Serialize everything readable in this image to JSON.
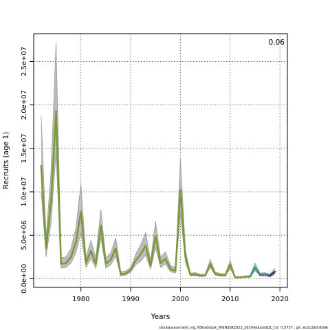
{
  "chart_data": {
    "type": "line",
    "title": "",
    "xlabel": "Years",
    "ylabel": "Recruits (age 1)",
    "corner_label": "0.06",
    "footer": "stockassessment.org, NShaddock_WGNSSK2022_2020reducedQ1_CV, r15737 , git: ec2c2a0c6dde",
    "xlim": [
      1970.5,
      2021.5
    ],
    "ylim": [
      -1000000,
      28200000
    ],
    "grid": "dotted at major ticks",
    "x_ticks": [
      1980,
      1990,
      2000,
      2010,
      2020
    ],
    "x_tick_labels": [
      "1980",
      "1990",
      "2000",
      "2010",
      "2020"
    ],
    "y_ticks": [
      0,
      5000000,
      10000000,
      15000000,
      20000000,
      25000000
    ],
    "y_tick_labels": [
      "0.0e+00",
      "5.0e+06",
      "1.0e+07",
      "1.5e+07",
      "2.0e+07",
      "2.5e+07"
    ],
    "years": [
      1972,
      1973,
      1974,
      1975,
      1976,
      1977,
      1978,
      1979,
      1980,
      1981,
      1982,
      1983,
      1984,
      1985,
      1986,
      1987,
      1988,
      1989,
      1990,
      1991,
      1992,
      1993,
      1994,
      1995,
      1996,
      1997,
      1998,
      1999,
      2000,
      2001,
      2002,
      2003,
      2004,
      2005,
      2006,
      2007,
      2008,
      2009,
      2010,
      2011,
      2012,
      2013,
      2014,
      2015,
      2016,
      2017,
      2018,
      2019
    ],
    "estimate": [
      13000000,
      3500000,
      9000000,
      19300000,
      1700000,
      1800000,
      2500000,
      4200000,
      7700000,
      1800000,
      3200000,
      1700000,
      6100000,
      1700000,
      2200000,
      3500000,
      500000,
      600000,
      1000000,
      2100000,
      2800000,
      3800000,
      1500000,
      4900000,
      1800000,
      2300000,
      1100000,
      900000,
      10200000,
      2500000,
      450000,
      500000,
      350000,
      380000,
      1700000,
      550000,
      420000,
      380000,
      1600000,
      150000,
      150000,
      220000,
      250000,
      1300000,
      450000,
      480000,
      350000,
      800000
    ],
    "lower": [
      10000000,
      2500000,
      6500000,
      14500000,
      1200000,
      1300000,
      1800000,
      3000000,
      5300000,
      1300000,
      2300000,
      1200000,
      4700000,
      1200000,
      1600000,
      2600000,
      300000,
      400000,
      750000,
      1600000,
      2000000,
      2700000,
      1100000,
      3600000,
      1300000,
      1700000,
      800000,
      650000,
      7500000,
      1900000,
      320000,
      360000,
      250000,
      270000,
      1300000,
      400000,
      300000,
      270000,
      1200000,
      100000,
      100000,
      150000,
      170000,
      950000,
      300000,
      300000,
      200000,
      500000
    ],
    "upper": [
      18800000,
      4800000,
      12500000,
      27200000,
      2400000,
      2500000,
      3500000,
      5900000,
      10900000,
      2500000,
      4400000,
      2400000,
      8000000,
      2400000,
      3000000,
      4700000,
      800000,
      900000,
      1300000,
      2800000,
      3900000,
      5300000,
      2100000,
      6600000,
      2500000,
      3100000,
      1500000,
      1300000,
      13800000,
      3300000,
      650000,
      700000,
      500000,
      530000,
      2200000,
      750000,
      600000,
      550000,
      2100000,
      250000,
      220000,
      320000,
      350000,
      1800000,
      650000,
      700000,
      550000,
      1200000
    ],
    "series": [
      {
        "name": "",
        "color": "#7a9a3a",
        "from_year": 1972,
        "to_year": 2014
      },
      {
        "name": "",
        "color": "#2e9c6c",
        "from_year": 2014,
        "to_year": 2016
      },
      {
        "name": "",
        "color": "#3f6fa8",
        "from_year": 2016,
        "to_year": 2018
      },
      {
        "name": "",
        "color": "#3b2a6b",
        "from_year": 2018,
        "to_year": 2019
      }
    ],
    "band_color": "#bdbdbd",
    "band_edge_color": "#9a9a9a"
  }
}
